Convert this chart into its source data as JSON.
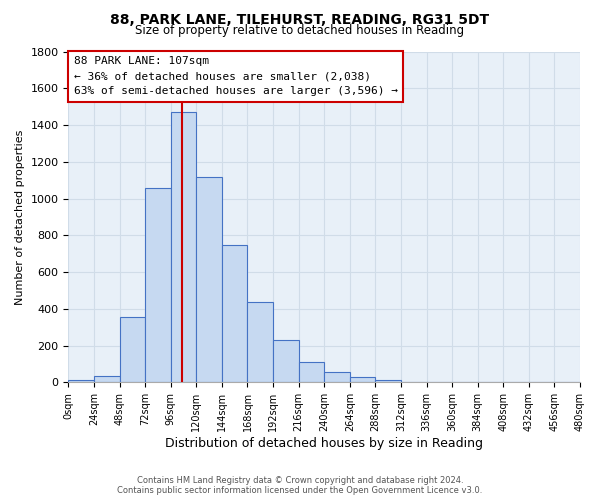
{
  "title": "88, PARK LANE, TILEHURST, READING, RG31 5DT",
  "subtitle": "Size of property relative to detached houses in Reading",
  "xlabel": "Distribution of detached houses by size in Reading",
  "ylabel": "Number of detached properties",
  "bin_edges": [
    0,
    24,
    48,
    72,
    96,
    120,
    144,
    168,
    192,
    216,
    240,
    264,
    288,
    312,
    336,
    360,
    384,
    408,
    432,
    456,
    480
  ],
  "bar_heights": [
    15,
    35,
    355,
    1060,
    1470,
    1120,
    745,
    440,
    230,
    110,
    55,
    30,
    15,
    5,
    0,
    0,
    0,
    0,
    0,
    0
  ],
  "bar_color": "#c6d9f1",
  "bar_edge_color": "#4472c4",
  "property_line_x": 107,
  "property_line_color": "#cc0000",
  "annotation_title": "88 PARK LANE: 107sqm",
  "annotation_line1": "← 36% of detached houses are smaller (2,038)",
  "annotation_line2": "63% of semi-detached houses are larger (3,596) →",
  "annotation_box_color": "#ffffff",
  "annotation_box_edge": "#cc0000",
  "ylim": [
    0,
    1800
  ],
  "yticks": [
    0,
    200,
    400,
    600,
    800,
    1000,
    1200,
    1400,
    1600,
    1800
  ],
  "xtick_labels": [
    "0sqm",
    "24sqm",
    "48sqm",
    "72sqm",
    "96sqm",
    "120sqm",
    "144sqm",
    "168sqm",
    "192sqm",
    "216sqm",
    "240sqm",
    "264sqm",
    "288sqm",
    "312sqm",
    "336sqm",
    "360sqm",
    "384sqm",
    "408sqm",
    "432sqm",
    "456sqm",
    "480sqm"
  ],
  "footer1": "Contains HM Land Registry data © Crown copyright and database right 2024.",
  "footer2": "Contains public sector information licensed under the Open Government Licence v3.0.",
  "grid_color": "#d0dce8",
  "background_color": "#e8f0f8"
}
